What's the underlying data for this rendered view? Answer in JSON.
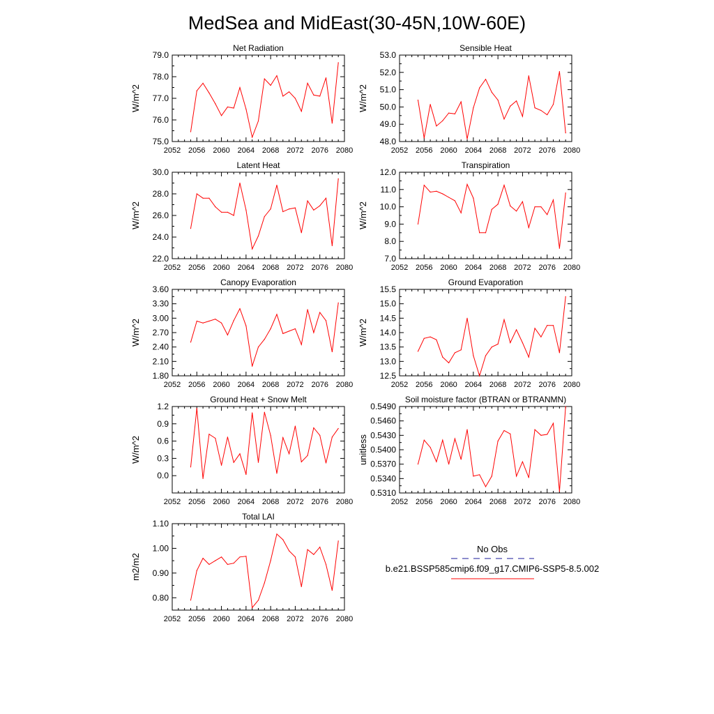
{
  "title": "MedSea and MidEast(30-45N,10W-60E)",
  "colors": {
    "series": "#ff0000",
    "obs_legend": "#1a1a99",
    "axis": "#000000"
  },
  "legend": {
    "obs_label": "No Obs",
    "model_label": "b.e21.BSSP585cmip6.f09_g17.CMIP6-SSP5-8.5.002"
  },
  "chart_data": [
    {
      "type": "line",
      "title": "Net Radiation",
      "ylabel": "W/m^2",
      "xlim": [
        2052,
        2080
      ],
      "ylim": [
        75.0,
        79.0
      ],
      "xticks": [
        "2052",
        "2056",
        "2060",
        "2064",
        "2068",
        "2072",
        "2076",
        "2080"
      ],
      "yticks": [
        "75.0",
        "76.0",
        "77.0",
        "78.0",
        "79.0"
      ],
      "x": [
        2055,
        2056,
        2057,
        2058,
        2059,
        2060,
        2061,
        2062,
        2063,
        2064,
        2065,
        2066,
        2067,
        2068,
        2069,
        2070,
        2071,
        2072,
        2073,
        2074,
        2075,
        2076,
        2077,
        2078,
        2079
      ],
      "values": [
        75.45,
        77.35,
        77.7,
        77.25,
        76.75,
        76.2,
        76.6,
        76.55,
        77.5,
        76.5,
        75.2,
        75.95,
        77.9,
        77.6,
        78.05,
        77.1,
        77.3,
        77.0,
        76.4,
        77.7,
        77.15,
        77.1,
        77.95,
        75.85,
        78.65
      ]
    },
    {
      "type": "line",
      "title": "Sensible Heat",
      "ylabel": "W/m^2",
      "xlim": [
        2052,
        2080
      ],
      "ylim": [
        48.0,
        53.0
      ],
      "xticks": [
        "2052",
        "2056",
        "2060",
        "2064",
        "2068",
        "2072",
        "2076",
        "2080"
      ],
      "yticks": [
        "48.0",
        "49.0",
        "50.0",
        "51.0",
        "52.0",
        "53.0"
      ],
      "x": [
        2055,
        2056,
        2057,
        2058,
        2059,
        2060,
        2061,
        2062,
        2063,
        2064,
        2065,
        2066,
        2067,
        2068,
        2069,
        2070,
        2071,
        2072,
        2073,
        2074,
        2075,
        2076,
        2077,
        2078,
        2079
      ],
      "values": [
        50.4,
        48.2,
        50.15,
        48.9,
        49.2,
        49.65,
        49.6,
        50.3,
        48.15,
        49.95,
        51.1,
        51.6,
        50.85,
        50.4,
        49.3,
        50.05,
        50.35,
        49.45,
        51.8,
        49.95,
        49.8,
        49.55,
        50.15,
        52.05,
        48.5
      ]
    },
    {
      "type": "line",
      "title": "Latent Heat",
      "ylabel": "W/m^2",
      "xlim": [
        2052,
        2080
      ],
      "ylim": [
        22.0,
        30.0
      ],
      "xticks": [
        "2052",
        "2056",
        "2060",
        "2064",
        "2068",
        "2072",
        "2076",
        "2080"
      ],
      "yticks": [
        "22.0",
        "24.0",
        "26.0",
        "28.0",
        "30.0"
      ],
      "x": [
        2055,
        2056,
        2057,
        2058,
        2059,
        2060,
        2061,
        2062,
        2063,
        2064,
        2065,
        2066,
        2067,
        2068,
        2069,
        2070,
        2071,
        2072,
        2073,
        2074,
        2075,
        2076,
        2077,
        2078,
        2079
      ],
      "values": [
        24.8,
        28.0,
        27.6,
        27.6,
        26.8,
        26.3,
        26.3,
        26.0,
        29.0,
        26.5,
        22.9,
        24.1,
        25.9,
        26.6,
        28.8,
        26.35,
        26.6,
        26.7,
        24.4,
        27.35,
        26.5,
        26.9,
        27.6,
        23.2,
        29.4
      ]
    },
    {
      "type": "line",
      "title": "Transpiration",
      "ylabel": "W/m^2",
      "xlim": [
        2052,
        2080
      ],
      "ylim": [
        7.0,
        12.0
      ],
      "xticks": [
        "2052",
        "2056",
        "2060",
        "2064",
        "2068",
        "2072",
        "2076",
        "2080"
      ],
      "yticks": [
        "7.0",
        "8.0",
        "9.0",
        "10.0",
        "11.0",
        "12.0"
      ],
      "x": [
        2055,
        2056,
        2057,
        2058,
        2059,
        2060,
        2061,
        2062,
        2063,
        2064,
        2065,
        2066,
        2067,
        2068,
        2069,
        2070,
        2071,
        2072,
        2073,
        2074,
        2075,
        2076,
        2077,
        2078,
        2079
      ],
      "values": [
        9.0,
        11.25,
        10.85,
        10.9,
        10.75,
        10.55,
        10.35,
        9.65,
        11.3,
        10.5,
        8.5,
        8.5,
        9.85,
        10.15,
        11.25,
        10.05,
        9.75,
        10.3,
        8.8,
        10.0,
        10.0,
        9.55,
        10.4,
        7.6,
        10.8
      ]
    },
    {
      "type": "line",
      "title": "Canopy Evaporation",
      "ylabel": "W/m^2",
      "xlim": [
        2052,
        2080
      ],
      "ylim": [
        1.8,
        3.6
      ],
      "xticks": [
        "2052",
        "2056",
        "2060",
        "2064",
        "2068",
        "2072",
        "2076",
        "2080"
      ],
      "yticks": [
        "1.80",
        "2.10",
        "2.40",
        "2.70",
        "3.00",
        "3.30",
        "3.60"
      ],
      "x": [
        2055,
        2056,
        2057,
        2058,
        2059,
        2060,
        2061,
        2062,
        2063,
        2064,
        2065,
        2066,
        2067,
        2068,
        2069,
        2070,
        2071,
        2072,
        2073,
        2074,
        2075,
        2076,
        2077,
        2078,
        2079
      ],
      "values": [
        2.5,
        2.94,
        2.9,
        2.94,
        2.98,
        2.9,
        2.65,
        2.95,
        3.2,
        2.84,
        2.0,
        2.4,
        2.56,
        2.78,
        3.08,
        2.68,
        2.73,
        2.78,
        2.45,
        3.18,
        2.7,
        3.12,
        2.95,
        2.3,
        3.32
      ]
    },
    {
      "type": "line",
      "title": "Ground Evaporation",
      "ylabel": "W/m^2",
      "xlim": [
        2052,
        2080
      ],
      "ylim": [
        12.5,
        15.5
      ],
      "xticks": [
        "2052",
        "2056",
        "2060",
        "2064",
        "2068",
        "2072",
        "2076",
        "2080"
      ],
      "yticks": [
        "12.5",
        "13.0",
        "13.5",
        "14.0",
        "14.5",
        "15.0",
        "15.5"
      ],
      "x": [
        2055,
        2056,
        2057,
        2058,
        2059,
        2060,
        2061,
        2062,
        2063,
        2064,
        2065,
        2066,
        2067,
        2068,
        2069,
        2070,
        2071,
        2072,
        2073,
        2074,
        2075,
        2076,
        2077,
        2078,
        2079
      ],
      "values": [
        13.35,
        13.8,
        13.85,
        13.75,
        13.15,
        12.95,
        13.3,
        13.4,
        14.5,
        13.2,
        12.5,
        13.2,
        13.5,
        13.6,
        14.45,
        13.65,
        14.1,
        13.65,
        13.15,
        14.15,
        13.85,
        14.25,
        14.25,
        13.3,
        15.25
      ]
    },
    {
      "type": "line",
      "title": "Ground Heat + Snow Melt",
      "ylabel": "W/m^2",
      "xlim": [
        2052,
        2080
      ],
      "ylim": [
        -0.3,
        1.2
      ],
      "xticks": [
        "2052",
        "2056",
        "2060",
        "2064",
        "2068",
        "2072",
        "2076",
        "2080"
      ],
      "yticks": [
        "0.0",
        "0.3",
        "0.6",
        "0.9",
        "1.2"
      ],
      "ytick_values": [
        0.0,
        0.3,
        0.6,
        0.9,
        1.2
      ],
      "x": [
        2055,
        2056,
        2057,
        2058,
        2059,
        2060,
        2061,
        2062,
        2063,
        2064,
        2065,
        2066,
        2067,
        2068,
        2069,
        2070,
        2071,
        2072,
        2073,
        2074,
        2075,
        2076,
        2077,
        2078,
        2079
      ],
      "values": [
        0.15,
        1.17,
        -0.05,
        0.72,
        0.65,
        0.18,
        0.67,
        0.23,
        0.38,
        0.02,
        1.09,
        0.23,
        1.1,
        0.7,
        0.04,
        0.66,
        0.38,
        0.86,
        0.24,
        0.35,
        0.83,
        0.7,
        0.22,
        0.67,
        0.82
      ]
    },
    {
      "type": "line",
      "title": "Soil moisture factor (BTRAN or BTRANMN)",
      "ylabel": "unitless",
      "xlim": [
        2052,
        2080
      ],
      "ylim": [
        0.531,
        0.549
      ],
      "xticks": [
        "2052",
        "2056",
        "2060",
        "2064",
        "2068",
        "2072",
        "2076",
        "2080"
      ],
      "yticks": [
        "0.5310",
        "0.5340",
        "0.5370",
        "0.5400",
        "0.5430",
        "0.5460",
        "0.5490"
      ],
      "x": [
        2055,
        2056,
        2057,
        2058,
        2059,
        2060,
        2061,
        2062,
        2063,
        2064,
        2065,
        2066,
        2067,
        2068,
        2069,
        2070,
        2071,
        2072,
        2073,
        2074,
        2075,
        2076,
        2077,
        2078,
        2079
      ],
      "values": [
        0.537,
        0.542,
        0.5405,
        0.5375,
        0.542,
        0.537,
        0.5423,
        0.538,
        0.5442,
        0.5345,
        0.5348,
        0.5323,
        0.5345,
        0.5418,
        0.544,
        0.5433,
        0.5345,
        0.5375,
        0.5342,
        0.5442,
        0.543,
        0.5432,
        0.5455,
        0.5313,
        0.549
      ]
    },
    {
      "type": "line",
      "title": "Total LAI",
      "ylabel": "m2/m2",
      "xlim": [
        2052,
        2080
      ],
      "ylim": [
        0.75,
        1.1
      ],
      "xticks": [
        "2052",
        "2056",
        "2060",
        "2064",
        "2068",
        "2072",
        "2076",
        "2080"
      ],
      "yticks": [
        "0.80",
        "0.90",
        "1.00",
        "1.10"
      ],
      "ytick_values": [
        0.8,
        0.9,
        1.0,
        1.1
      ],
      "x": [
        2055,
        2056,
        2057,
        2058,
        2059,
        2060,
        2061,
        2062,
        2063,
        2064,
        2065,
        2066,
        2067,
        2068,
        2069,
        2070,
        2071,
        2072,
        2073,
        2074,
        2075,
        2076,
        2077,
        2078,
        2079
      ],
      "values": [
        0.79,
        0.91,
        0.96,
        0.935,
        0.95,
        0.965,
        0.935,
        0.94,
        0.965,
        0.968,
        0.76,
        0.79,
        0.86,
        0.95,
        1.058,
        1.035,
        0.99,
        0.965,
        0.845,
        0.995,
        0.975,
        1.005,
        0.935,
        0.83,
        1.03
      ]
    }
  ]
}
